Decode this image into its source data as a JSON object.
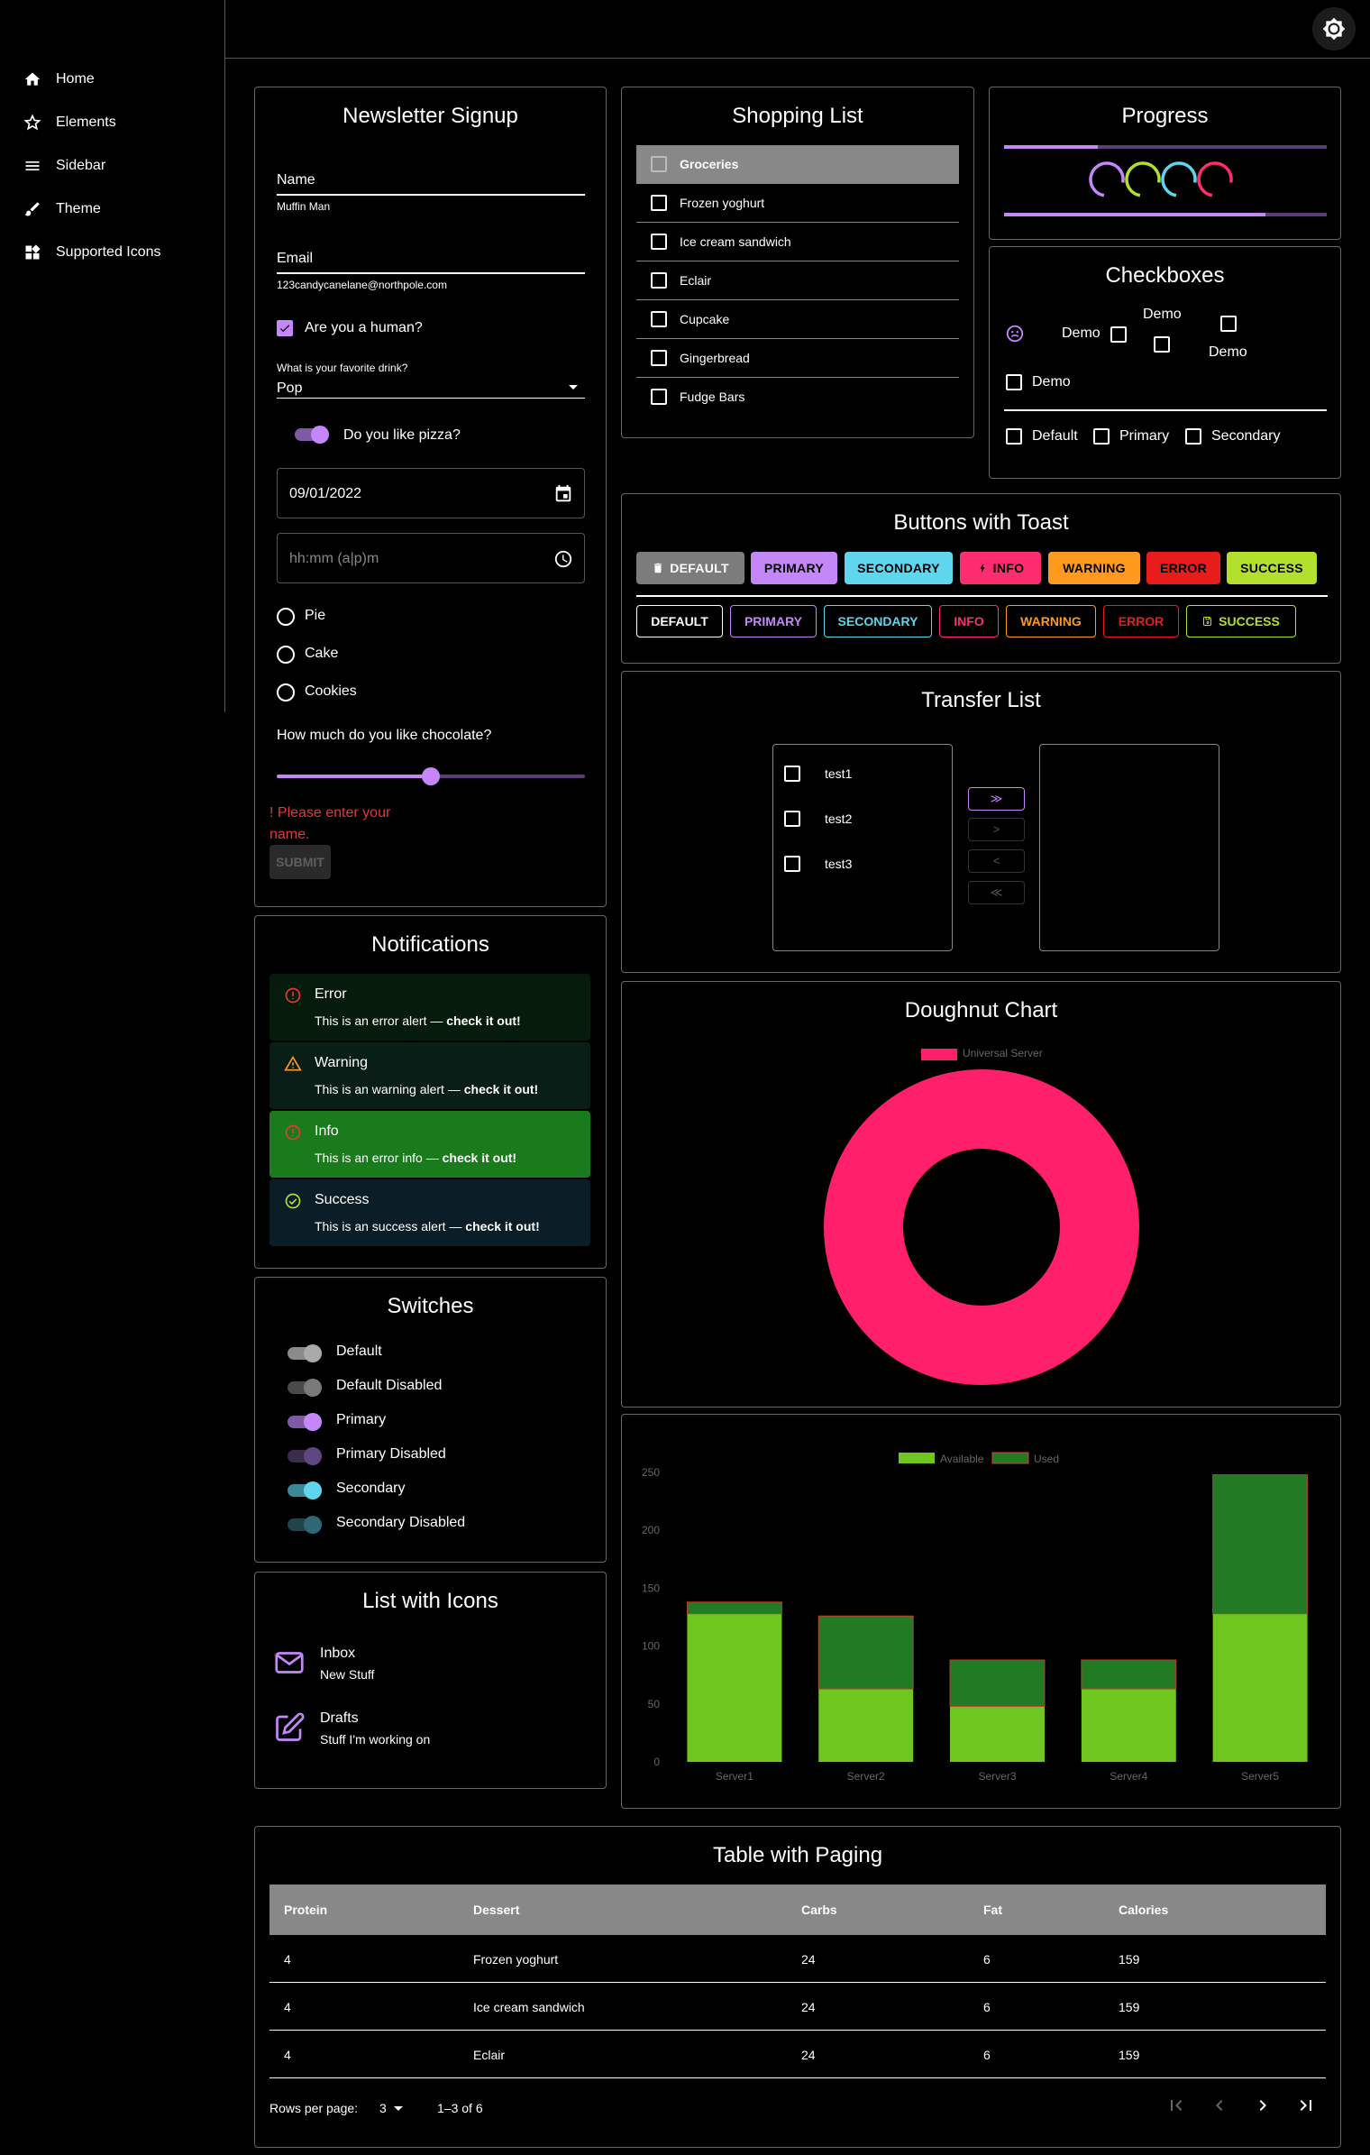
{
  "nav": {
    "items": [
      {
        "label": "Home"
      },
      {
        "label": "Elements"
      },
      {
        "label": "Sidebar"
      },
      {
        "label": "Theme"
      },
      {
        "label": "Supported Icons"
      }
    ]
  },
  "newsletter": {
    "title": "Newsletter Signup",
    "name_label": "Name",
    "name_value": "Muffin Man",
    "email_label": "Email",
    "email_value": "123candycanelane@northpole.com",
    "human_label": "Are you a human?",
    "drink_label": "What is your favorite drink?",
    "drink_value": "Pop",
    "pizza_label": "Do you like pizza?",
    "date_value": "09/01/2022",
    "time_placeholder": "hh:mm (a|p)m",
    "radios": [
      "Pie",
      "Cake",
      "Cookies"
    ],
    "chocolate_label": "How much do you like chocolate?",
    "slider_value": 0.5,
    "error": "! Please enter your name.",
    "submit": "SUBMIT"
  },
  "shopping": {
    "title": "Shopping List",
    "items": [
      "Groceries",
      "Frozen yoghurt",
      "Ice cream sandwich",
      "Eclair",
      "Cupcake",
      "Gingerbread",
      "Fudge Bars"
    ]
  },
  "progress": {
    "title": "Progress",
    "bar1": 0.29,
    "bar2": 0.81,
    "colors": [
      "#c486f8",
      "#b3e02c",
      "#5ed7ee",
      "#ff2d6f"
    ]
  },
  "checkboxes": {
    "title": "Checkboxes",
    "demo": "Demo",
    "default": "Default",
    "primary": "Primary",
    "secondary": "Secondary"
  },
  "buttons": {
    "title": "Buttons with Toast",
    "filled": [
      {
        "label": "DEFAULT",
        "bg": "#7c7c7c",
        "fg": "#fff"
      },
      {
        "label": "PRIMARY",
        "bg": "#c486f8",
        "fg": "#000"
      },
      {
        "label": "SECONDARY",
        "bg": "#5ed7ee",
        "fg": "#000"
      },
      {
        "label": "INFO",
        "bg": "#ff2d6f",
        "fg": "#000"
      },
      {
        "label": "WARNING",
        "bg": "#ff9a1f",
        "fg": "#000"
      },
      {
        "label": "ERROR",
        "bg": "#e91c1c",
        "fg": "#000"
      },
      {
        "label": "SUCCESS",
        "bg": "#b3e02c",
        "fg": "#000"
      }
    ],
    "outlined": [
      {
        "label": "DEFAULT",
        "color": "#fff"
      },
      {
        "label": "PRIMARY",
        "color": "#c486f8"
      },
      {
        "label": "SECONDARY",
        "color": "#5ed7ee"
      },
      {
        "label": "INFO",
        "color": "#ff2d6f"
      },
      {
        "label": "WARNING",
        "color": "#ff9a1f"
      },
      {
        "label": "ERROR",
        "color": "#e91c1c"
      },
      {
        "label": "SUCCESS",
        "color": "#b3e02c"
      }
    ]
  },
  "transfer": {
    "title": "Transfer List",
    "items": [
      "test1",
      "test2",
      "test3"
    ],
    "buttons": [
      "≫",
      ">",
      "<",
      "≪"
    ]
  },
  "doughnut": {
    "title": "Doughnut Chart",
    "legend": "Universal Server",
    "color": "#ff1f6b"
  },
  "chart_data": {
    "type": "bar",
    "categories": [
      "Server1",
      "Server2",
      "Server3",
      "Server4",
      "Server5"
    ],
    "series": [
      {
        "name": "Available",
        "values": [
          128,
          63,
          48,
          63,
          128
        ],
        "color": "#6ec61f"
      },
      {
        "name": "Used",
        "values": [
          10,
          63,
          40,
          25,
          120
        ],
        "color": "#227a25"
      }
    ],
    "stacked": true,
    "ylim": [
      0,
      250
    ],
    "yticks": [
      0,
      50,
      100,
      150,
      200,
      250
    ],
    "legend": "top"
  },
  "notifications": {
    "title": "Notifications",
    "alerts": [
      {
        "title": "Error",
        "msg": "This is an error alert — ",
        "bold": "check it out!",
        "bg": "#071b0c",
        "icon": "#e53935"
      },
      {
        "title": "Warning",
        "msg": "This is an warning alert — ",
        "bold": "check it out!",
        "bg": "#081e17",
        "icon": "#ff9a1f"
      },
      {
        "title": "Info",
        "msg": "This is an error info — ",
        "bold": "check it out!",
        "bg": "#197b1c",
        "icon": "#e53935"
      },
      {
        "title": "Success",
        "msg": "This is an success alert — ",
        "bold": "check it out!",
        "bg": "#0b1d26",
        "icon": "#b3e02c"
      }
    ]
  },
  "switches": {
    "title": "Switches",
    "items": [
      "Default",
      "Default Disabled",
      "Primary",
      "Primary Disabled",
      "Secondary",
      "Secondary Disabled"
    ]
  },
  "listicons": {
    "title": "List with Icons",
    "items": [
      {
        "title": "Inbox",
        "sub": "New Stuff"
      },
      {
        "title": "Drafts",
        "sub": "Stuff I'm working on"
      }
    ]
  },
  "table": {
    "title": "Table with Paging",
    "headers": [
      "Protein",
      "Dessert",
      "Carbs",
      "Fat",
      "Calories"
    ],
    "rows": [
      [
        "4",
        "Frozen yoghurt",
        "24",
        "6",
        "159"
      ],
      [
        "4",
        "Ice cream sandwich",
        "24",
        "6",
        "159"
      ],
      [
        "4",
        "Eclair",
        "24",
        "6",
        "159"
      ]
    ],
    "rows_per_page_label": "Rows per page:",
    "rows_per_page": "3",
    "range": "1–3 of 6"
  }
}
